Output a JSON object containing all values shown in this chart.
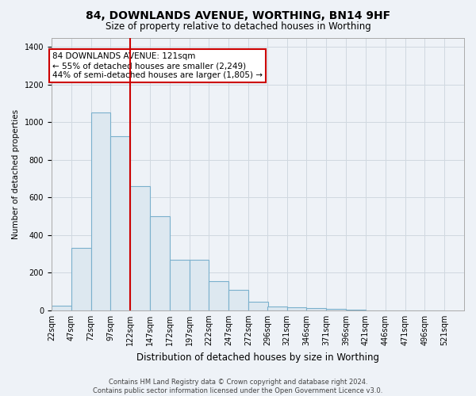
{
  "title": "84, DOWNLANDS AVENUE, WORTHING, BN14 9HF",
  "subtitle": "Size of property relative to detached houses in Worthing",
  "xlabel": "Distribution of detached houses by size in Worthing",
  "ylabel": "Number of detached properties",
  "footer_line1": "Contains HM Land Registry data © Crown copyright and database right 2024.",
  "footer_line2": "Contains public sector information licensed under the Open Government Licence v3.0.",
  "property_label": "84 DOWNLANDS AVENUE: 121sqm",
  "annotation_line2": "← 55% of detached houses are smaller (2,249)",
  "annotation_line3": "44% of semi-detached houses are larger (1,805) →",
  "bar_edges": [
    22,
    47,
    72,
    97,
    122,
    147,
    172,
    197,
    222,
    247,
    272,
    296,
    321,
    346,
    371,
    396,
    421,
    446,
    471,
    496,
    521
  ],
  "bar_heights": [
    25,
    330,
    1050,
    925,
    660,
    500,
    270,
    270,
    155,
    110,
    45,
    20,
    15,
    10,
    8,
    2,
    0,
    0,
    0,
    0
  ],
  "bar_color": "#dde8f0",
  "bar_edge_color": "#7ab0cc",
  "vline_color": "#cc0000",
  "vline_x": 122,
  "annotation_box_edge_color": "#cc0000",
  "annotation_fill": "#ffffff",
  "grid_color": "#d0d8e0",
  "background_color": "#eef2f7",
  "plot_bg_color": "#eef2f7",
  "ylim": [
    0,
    1450
  ],
  "yticks": [
    0,
    200,
    400,
    600,
    800,
    1000,
    1200,
    1400
  ],
  "title_fontsize": 10,
  "subtitle_fontsize": 8.5,
  "ylabel_fontsize": 7.5,
  "xlabel_fontsize": 8.5,
  "tick_fontsize": 7,
  "annotation_fontsize": 7.5,
  "footer_fontsize": 6
}
